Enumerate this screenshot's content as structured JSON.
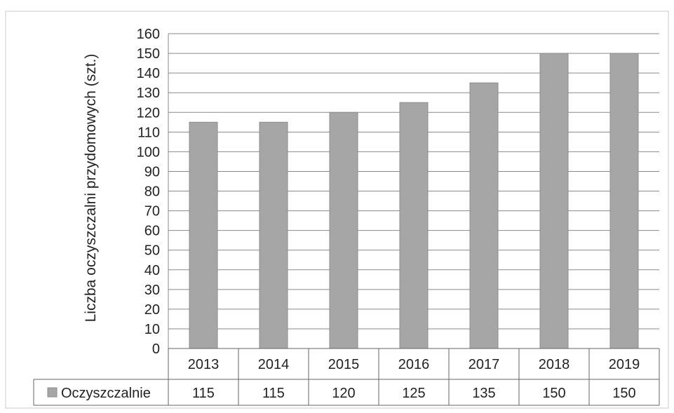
{
  "chart_data": {
    "type": "bar",
    "title": "",
    "xlabel": "",
    "ylabel": "Liczba oczyszczalni przydomowych (szt.)",
    "categories": [
      "2013",
      "2014",
      "2015",
      "2016",
      "2017",
      "2018",
      "2019"
    ],
    "series": [
      {
        "name": "Oczyszczalnie",
        "values": [
          115,
          115,
          120,
          125,
          135,
          150,
          150
        ],
        "color": "#a6a6a6"
      }
    ],
    "table_values": [
      "115",
      "115",
      "120",
      "125",
      "135",
      "150",
      "150"
    ],
    "ylim": [
      0,
      160
    ],
    "yticks": [
      0,
      10,
      20,
      30,
      40,
      50,
      60,
      70,
      80,
      90,
      100,
      110,
      120,
      130,
      140,
      150,
      160
    ],
    "grid": true,
    "legend": "data-table",
    "colors": {
      "bar": "#a6a6a6",
      "bar_edge": "#8c8c8c",
      "grid": "#8a8a8a",
      "frame": "#c8c8c8",
      "text": "#222222"
    }
  }
}
